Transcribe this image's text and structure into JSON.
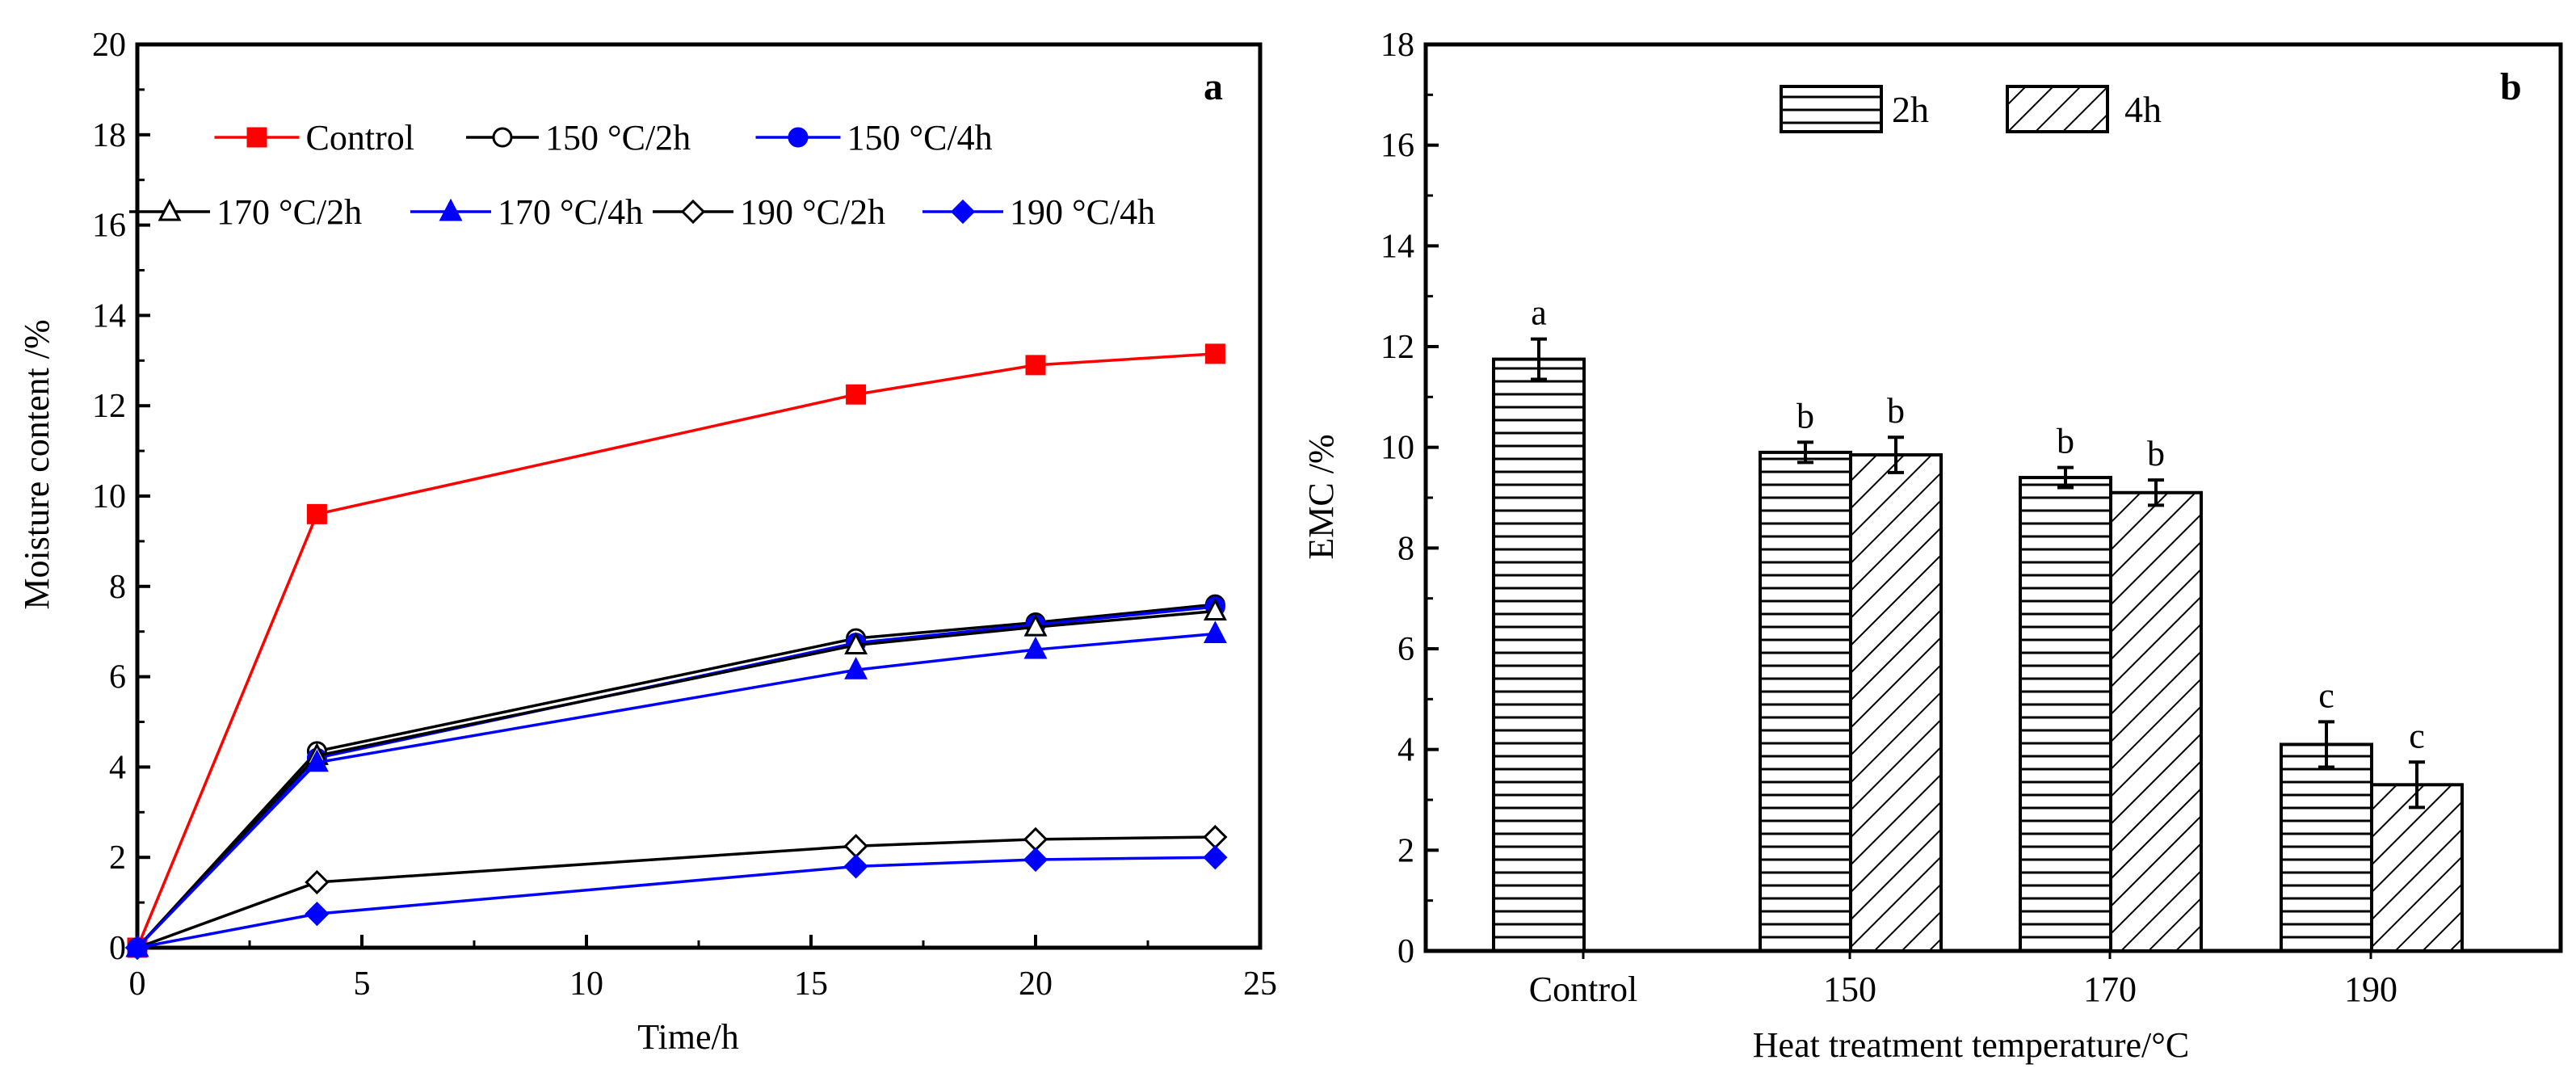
{
  "chart_data": [
    {
      "panel": "a",
      "type": "line",
      "xlabel": "Time/h",
      "ylabel": "Moisture  content /%",
      "xlim": [
        0,
        25
      ],
      "ylim": [
        0,
        20
      ],
      "xticks": [
        "0",
        "5",
        "10",
        "15",
        "20",
        "25"
      ],
      "yticks": [
        "0",
        "2",
        "4",
        "6",
        "8",
        "10",
        "12",
        "14",
        "16",
        "18",
        "20"
      ],
      "x": [
        0,
        4,
        16,
        20,
        24
      ],
      "series": [
        {
          "name": "Control",
          "values": [
            0,
            9.6,
            12.25,
            12.9,
            13.15
          ],
          "color": "#ff0000",
          "marker": "square-filled"
        },
        {
          "name": "150 °C/2h",
          "values": [
            0,
            4.35,
            6.85,
            7.2,
            7.6
          ],
          "color": "#000000",
          "marker": "circle-open"
        },
        {
          "name": "150 °C/4h",
          "values": [
            0,
            4.2,
            6.75,
            7.15,
            7.55
          ],
          "color": "#0000ff",
          "marker": "circle-filled"
        },
        {
          "name": "170 °C/2h",
          "values": [
            0,
            4.25,
            6.7,
            7.1,
            7.45
          ],
          "color": "#000000",
          "marker": "triangle-open"
        },
        {
          "name": "170 °C/4h",
          "values": [
            0,
            4.1,
            6.15,
            6.6,
            6.95
          ],
          "color": "#0000ff",
          "marker": "triangle-filled"
        },
        {
          "name": "190 °C/2h",
          "values": [
            0,
            1.45,
            2.25,
            2.4,
            2.45
          ],
          "color": "#000000",
          "marker": "diamond-open"
        },
        {
          "name": "190 °C/4h",
          "values": [
            0,
            0.75,
            1.8,
            1.95,
            2.0
          ],
          "color": "#0000ff",
          "marker": "diamond-filled"
        }
      ]
    },
    {
      "panel": "b",
      "type": "bar",
      "xlabel": "Heat treatment  temperature/°C",
      "ylabel": "EMC /%",
      "ylim": [
        0,
        18
      ],
      "yticks": [
        "0",
        "2",
        "4",
        "6",
        "8",
        "10",
        "12",
        "14",
        "16",
        "18"
      ],
      "categories": [
        "Control",
        "150",
        "170",
        "190"
      ],
      "series": [
        {
          "name": "2h",
          "pattern": "horizontal-lines",
          "values": [
            11.75,
            9.9,
            9.4,
            4.1
          ],
          "errors": [
            0.4,
            0.2,
            0.2,
            0.45
          ],
          "letters": [
            "a",
            "b",
            "b",
            "c"
          ]
        },
        {
          "name": "4h",
          "pattern": "diagonal-lines",
          "values": [
            null,
            9.85,
            9.1,
            3.3
          ],
          "errors": [
            null,
            0.35,
            0.25,
            0.45
          ],
          "letters": [
            null,
            "b",
            "b",
            "c"
          ]
        }
      ]
    }
  ]
}
